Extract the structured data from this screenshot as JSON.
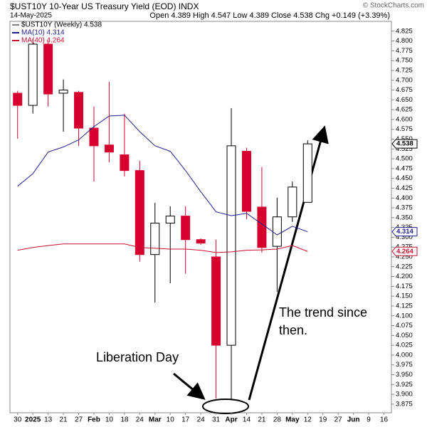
{
  "chart_data": {
    "type": "candlestick",
    "title": "$UST10Y 10-Year US Treasury Yield (EOD) INDX",
    "date": "14-May-2025",
    "quote": "Open 4.389  High 4.547  Low 4.389  Close 4.538  Chg +0.149 (+3.39%)",
    "source": "© StockCharts.com",
    "categories": [
      "30",
      "2025",
      "13",
      "21",
      "27",
      "Feb",
      "10",
      "18",
      "24",
      "Mar",
      "10",
      "17",
      "24",
      "31",
      "Apr",
      "14",
      "21",
      "28",
      "May",
      "12",
      "19",
      "27",
      "Jun",
      "9",
      "16"
    ],
    "price": {
      "name": "$UST10Y (Weekly) 4.538",
      "open": [
        4.667,
        4.636,
        4.792,
        4.667,
        4.669,
        4.578,
        4.535,
        4.51,
        4.47,
        4.256,
        4.336,
        4.354,
        4.294,
        4.25,
        4.025,
        4.519,
        4.377,
        4.277,
        4.352,
        4.389,
        null,
        null,
        null,
        null,
        null
      ],
      "high": [
        4.673,
        4.805,
        4.8,
        4.702,
        4.673,
        4.633,
        4.696,
        4.615,
        4.495,
        4.388,
        4.379,
        4.379,
        4.297,
        4.294,
        4.629,
        4.528,
        4.479,
        4.401,
        4.442,
        4.547,
        null,
        null,
        null,
        null,
        null
      ],
      "low": [
        4.551,
        4.615,
        4.633,
        4.569,
        4.533,
        4.442,
        4.491,
        4.455,
        4.238,
        4.134,
        4.183,
        4.207,
        4.281,
        3.889,
        3.885,
        4.346,
        4.261,
        4.161,
        4.339,
        4.389,
        null,
        null,
        null,
        null,
        null
      ],
      "close": [
        4.636,
        4.792,
        4.665,
        4.675,
        4.578,
        4.533,
        4.517,
        4.47,
        4.256,
        4.336,
        4.354,
        4.294,
        4.285,
        4.025,
        4.533,
        4.366,
        4.274,
        4.352,
        4.428,
        4.538,
        null,
        null,
        null,
        null,
        null
      ],
      "up_color": "#ffffff",
      "down_color": "#d6002f"
    },
    "series": [
      {
        "name": "MA(10) 4.314",
        "color": "#1f1f8f",
        "values": [
          4.43,
          4.462,
          4.517,
          4.53,
          4.548,
          4.582,
          4.609,
          4.611,
          4.569,
          4.533,
          4.519,
          4.47,
          4.416,
          4.365,
          4.355,
          4.361,
          4.334,
          4.306,
          4.328,
          4.314,
          null,
          null,
          null,
          null,
          null
        ]
      },
      {
        "name": "MA(40) 4.264",
        "color": "#c8102e",
        "values": [
          4.267,
          4.274,
          4.279,
          4.283,
          4.283,
          4.283,
          4.283,
          4.283,
          4.274,
          4.272,
          4.27,
          4.27,
          4.267,
          4.261,
          4.263,
          4.267,
          4.268,
          4.27,
          4.279,
          4.264,
          null,
          null,
          null,
          null,
          null
        ]
      }
    ],
    "price_markers": [
      4.538,
      4.314,
      4.264
    ],
    "annotations": [
      "Liberation Day",
      "The trend since",
      "then."
    ],
    "ylim": [
      3.853,
      4.85
    ],
    "yticks": [
      4.825,
      {
        "value": 4.8,
        "label": "4.800"
      },
      4.775,
      {
        "value": 4.75,
        "label": "4.750"
      },
      4.725,
      {
        "value": 4.7,
        "label": "4.700"
      },
      4.675,
      {
        "value": 4.65,
        "label": "4.650"
      },
      4.625,
      {
        "value": 4.6,
        "label": "4.600"
      },
      4.575,
      {
        "value": 4.55,
        "label": "4.550"
      },
      4.525,
      {
        "value": 4.5,
        "label": "4.500"
      },
      4.475,
      {
        "value": 4.45,
        "label": "4.450"
      },
      4.425,
      {
        "value": 4.4,
        "label": "4.400"
      },
      4.375,
      {
        "value": 4.35,
        "label": "4.350"
      },
      4.325,
      {
        "value": 4.3,
        "label": "4.300"
      },
      4.275,
      {
        "value": 4.25,
        "label": "4.250"
      },
      4.225,
      {
        "value": 4.2,
        "label": "4.200"
      },
      4.175,
      {
        "value": 4.15,
        "label": "4.150"
      },
      4.125,
      {
        "value": 4.1,
        "label": "4.100"
      },
      4.075,
      {
        "value": 4.05,
        "label": "4.050"
      },
      4.025,
      {
        "value": 4,
        "label": "4.000"
      },
      3.975,
      {
        "value": 3.95,
        "label": "3.950"
      },
      3.925,
      {
        "value": 3.9,
        "label": "3.900"
      },
      3.875
    ]
  }
}
